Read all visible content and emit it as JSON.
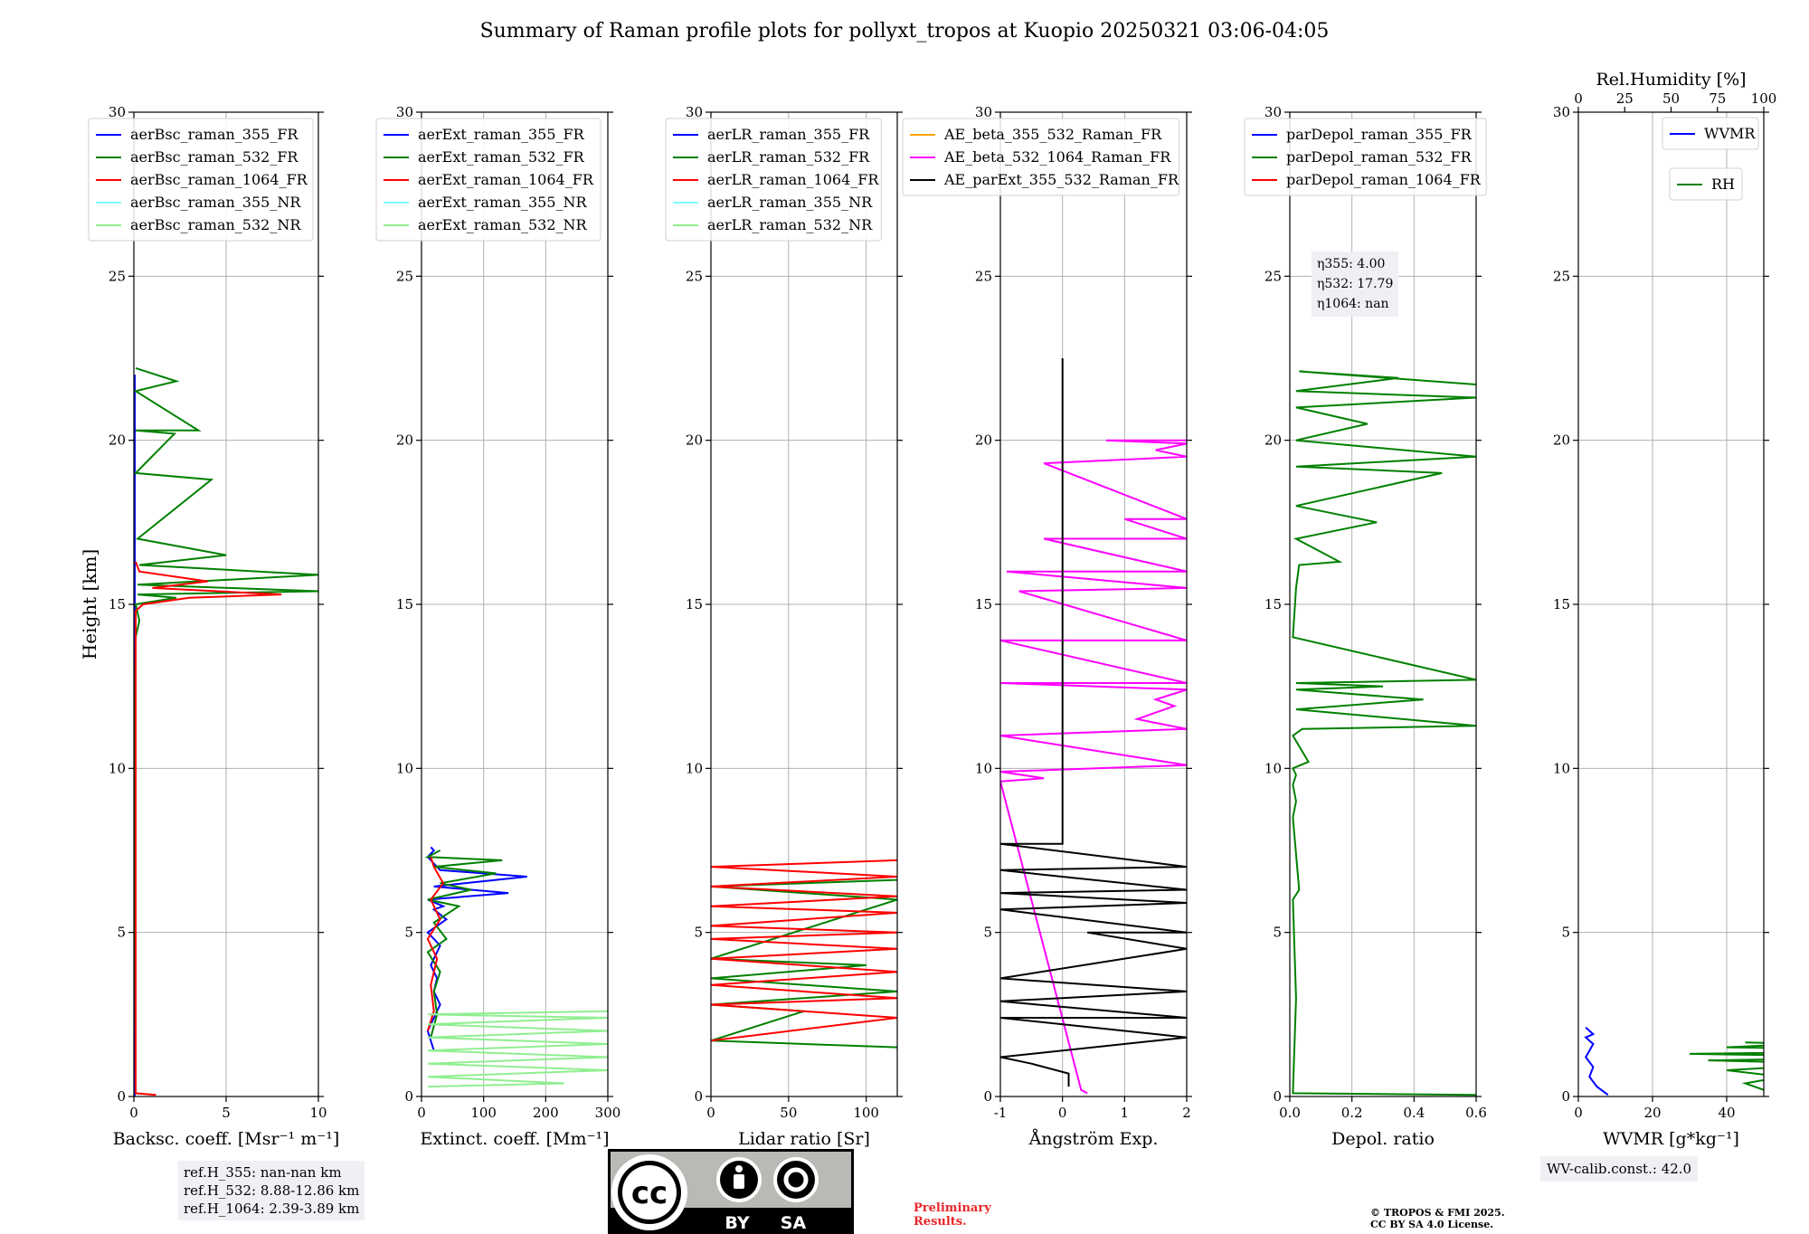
{
  "title": "Summary of Raman profile plots for pollyxt_tropos at Kuopio 20250321 03:06-04:05",
  "ref_heights": [
    "ref.H_355: nan-nan km",
    "ref.H_532: 8.88-12.86 km",
    "ref.H_1064: 2.39-3.89 km"
  ],
  "wv_calib": "WV-calib.const.: 42.0",
  "eta": [
    "η355: 4.00",
    "η532: 17.79",
    "η1064: nan"
  ],
  "preliminary": [
    "Preliminary",
    "Results."
  ],
  "copyright": [
    "© TROPOS & FMI 2025.",
    "CC BY SA 4.0 License."
  ],
  "license_badge": {
    "left": "BY",
    "right": "SA"
  },
  "colors": {
    "c355": "#0000ff",
    "c532": "#008000",
    "c1064": "#ff0000",
    "nr355": "#80ffff",
    "nr532": "#90ee90",
    "ae1": "#ffa500",
    "ae2": "#ff00ff",
    "ae3": "#000000",
    "prelim": "#e8262a"
  },
  "chart_data": [
    {
      "type": "line",
      "xlabel": "Backsc. coeff. [Msr⁻¹ m⁻¹]",
      "ylabel": "Height [km]",
      "xlim": [
        0,
        10
      ],
      "xticks": [
        0,
        5,
        10
      ],
      "ylim": [
        0,
        30
      ],
      "yticks": [
        0,
        5,
        10,
        15,
        20,
        25,
        30
      ],
      "legend": [
        "aerBsc_raman_355_FR",
        "aerBsc_raman_532_FR",
        "aerBsc_raman_1064_FR",
        "aerBsc_raman_355_NR",
        "aerBsc_raman_532_NR"
      ],
      "legend_loc": "top-left",
      "series": [
        {
          "name": "aerBsc_raman_355_FR",
          "color": "#0000ff",
          "x": [
            0.05,
            0.05,
            0.05
          ],
          "y": [
            0,
            10,
            22
          ]
        },
        {
          "name": "aerBsc_raman_532_FR",
          "color": "#008000",
          "x": [
            0.1,
            0.05,
            0.1,
            0.3,
            0.1,
            2.3,
            0.2,
            10,
            0.2,
            10,
            0.3,
            5,
            0.2,
            4.2,
            0.1,
            2.2,
            0.1,
            3.5,
            0.1,
            2.3,
            0.1
          ],
          "y": [
            0.2,
            10,
            14,
            14.5,
            15,
            15.2,
            15.3,
            15.4,
            15.6,
            15.9,
            16.2,
            16.5,
            17,
            18.8,
            19,
            20.2,
            20.3,
            20.3,
            21.5,
            21.8,
            22.2
          ]
        },
        {
          "name": "aerBsc_raman_1064_FR",
          "color": "#ff0000",
          "x": [
            1.2,
            0.1,
            0.1,
            0.5,
            3,
            8,
            1,
            4,
            0.3,
            0.1
          ],
          "y": [
            0.05,
            0.1,
            14.8,
            15,
            15.2,
            15.3,
            15.5,
            15.7,
            16,
            16.3
          ]
        },
        {
          "name": "aerBsc_raman_355_NR",
          "color": "#80ffff",
          "x": [],
          "y": []
        },
        {
          "name": "aerBsc_raman_532_NR",
          "color": "#90ee90",
          "x": [],
          "y": []
        }
      ]
    },
    {
      "type": "line",
      "xlabel": "Extinct. coeff. [Mm⁻¹]",
      "xlim": [
        0,
        300
      ],
      "xticks": [
        0,
        100,
        200,
        300
      ],
      "ylim": [
        0,
        30
      ],
      "yticks": [
        0,
        5,
        10,
        15,
        20,
        25,
        30
      ],
      "legend": [
        "aerExt_raman_355_FR",
        "aerExt_raman_532_FR",
        "aerExt_raman_1064_FR",
        "aerExt_raman_355_NR",
        "aerExt_raman_532_NR"
      ],
      "legend_loc": "top-left",
      "series": [
        {
          "name": "aerExt_raman_355_FR",
          "color": "#0000ff",
          "x": [
            20,
            10,
            30,
            20,
            25,
            15,
            30,
            10,
            40,
            20,
            35,
            10,
            140,
            20,
            170,
            30,
            20,
            10,
            20,
            15
          ],
          "y": [
            1.4,
            2.0,
            2.8,
            3.2,
            3.6,
            4.0,
            4.6,
            5.0,
            5.4,
            5.7,
            5.8,
            6.0,
            6.2,
            6.4,
            6.7,
            6.9,
            7.1,
            7.3,
            7.5,
            7.6
          ]
        },
        {
          "name": "aerExt_raman_532_FR",
          "color": "#008000",
          "x": [
            15,
            25,
            20,
            30,
            10,
            40,
            20,
            60,
            10,
            80,
            30,
            120,
            20,
            130,
            10,
            30
          ],
          "y": [
            1.8,
            2.5,
            3.2,
            3.8,
            4.4,
            4.8,
            5.3,
            5.8,
            6.0,
            6.3,
            6.5,
            6.8,
            7.0,
            7.2,
            7.3,
            7.5
          ]
        },
        {
          "name": "aerExt_raman_1064_FR",
          "color": "#ff0000",
          "x": [
            10,
            20,
            15,
            25,
            10,
            30,
            15,
            35,
            20,
            15
          ],
          "y": [
            2.0,
            2.6,
            3.4,
            4.2,
            4.8,
            5.4,
            6.0,
            6.5,
            7.0,
            7.3
          ]
        },
        {
          "name": "aerExt_raman_355_NR",
          "color": "#80ffff",
          "x": [],
          "y": []
        },
        {
          "name": "aerExt_raman_532_NR",
          "color": "#90ee90",
          "x": [
            10,
            230,
            10,
            300,
            10,
            300,
            10,
            300,
            10,
            300,
            10,
            300,
            10,
            300
          ],
          "y": [
            0.3,
            0.4,
            0.6,
            0.8,
            1.0,
            1.2,
            1.4,
            1.6,
            1.8,
            2.0,
            2.2,
            2.4,
            2.5,
            2.6
          ]
        }
      ]
    },
    {
      "type": "line",
      "xlabel": "Lidar ratio [Sr]",
      "xlim": [
        0,
        120
      ],
      "xticks": [
        0,
        50,
        100
      ],
      "ylim": [
        0,
        30
      ],
      "yticks": [
        0,
        5,
        10,
        15,
        20,
        25,
        30
      ],
      "legend": [
        "aerLR_raman_355_FR",
        "aerLR_raman_532_FR",
        "aerLR_raman_1064_FR",
        "aerLR_raman_355_NR",
        "aerLR_raman_532_NR"
      ],
      "legend_loc": "top-left",
      "series": [
        {
          "name": "aerLR_raman_355_FR",
          "color": "#0000ff",
          "x": [],
          "y": []
        },
        {
          "name": "aerLR_raman_532_FR",
          "color": "#008000",
          "x": [
            120,
            0,
            60,
            0,
            120,
            0,
            100,
            0,
            120,
            0,
            120
          ],
          "y": [
            1.5,
            1.7,
            2.6,
            2.8,
            3.2,
            3.6,
            4.0,
            4.2,
            6.0,
            6.4,
            6.6
          ]
        },
        {
          "name": "aerLR_raman_1064_FR",
          "color": "#ff0000",
          "x": [
            0,
            120,
            0,
            120,
            0,
            120,
            0,
            120,
            0,
            120,
            0,
            120,
            0,
            120,
            0,
            120,
            0,
            120
          ],
          "y": [
            1.7,
            2.4,
            2.8,
            3.0,
            3.4,
            3.8,
            4.2,
            4.5,
            4.8,
            5.0,
            5.2,
            5.6,
            5.8,
            6.1,
            6.4,
            6.7,
            7.0,
            7.2
          ]
        },
        {
          "name": "aerLR_raman_355_NR",
          "color": "#80ffff",
          "x": [],
          "y": []
        },
        {
          "name": "aerLR_raman_532_NR",
          "color": "#90ee90",
          "x": [],
          "y": []
        }
      ]
    },
    {
      "type": "line",
      "xlabel": "Ångström Exp.",
      "xlim": [
        -1,
        2
      ],
      "xticks": [
        -1,
        0,
        1,
        2
      ],
      "ylim": [
        0,
        30
      ],
      "yticks": [
        0,
        5,
        10,
        15,
        20,
        25,
        30
      ],
      "legend": [
        "AE_beta_355_532_Raman_FR",
        "AE_beta_532_1064_Raman_FR",
        "AE_parExt_355_532_Raman_FR"
      ],
      "legend_loc": "top-center",
      "series": [
        {
          "name": "AE_beta_355_532_Raman_FR",
          "color": "#ffa500",
          "x": [],
          "y": []
        },
        {
          "name": "AE_beta_532_1064_Raman_FR",
          "color": "#ff00ff",
          "x": [
            0.4,
            0.3,
            -1,
            -0.3,
            -1,
            2,
            -1,
            2,
            1.2,
            1.8,
            1.5,
            2,
            -1,
            2,
            -1,
            2,
            -0.7,
            2,
            -0.9,
            2,
            -0.3,
            2,
            1,
            2,
            -0.3,
            2,
            1.5,
            2,
            0.7,
            2
          ],
          "y": [
            0.1,
            0.2,
            9.6,
            9.7,
            9.9,
            10.1,
            11.0,
            11.2,
            11.5,
            11.9,
            12.1,
            12.4,
            12.6,
            12.6,
            13.9,
            13.9,
            15.4,
            15.5,
            16.0,
            16.0,
            17.0,
            17.0,
            17.6,
            17.6,
            19.3,
            19.5,
            19.7,
            19.9,
            20.0,
            20.0
          ]
        },
        {
          "name": "AE_parExt_355_532_Raman_FR",
          "color": "#000000",
          "x": [
            0.1,
            0.1,
            -0.5,
            -1,
            2,
            -1,
            2,
            -1,
            2,
            -1,
            2,
            0.4,
            2,
            -1,
            2,
            -1,
            2,
            -1,
            2,
            -1,
            0,
            0,
            0
          ],
          "y": [
            0.3,
            0.7,
            1.0,
            1.2,
            1.8,
            2.4,
            2.4,
            2.9,
            3.2,
            3.6,
            4.5,
            5.0,
            5.0,
            5.7,
            5.9,
            6.2,
            6.3,
            6.9,
            7.0,
            7.7,
            7.7,
            15,
            22.5
          ]
        }
      ]
    },
    {
      "type": "line",
      "xlabel": "Depol. ratio",
      "xlim": [
        0,
        0.6
      ],
      "xticks": [
        0.0,
        0.2,
        0.4,
        0.6
      ],
      "ylim": [
        0,
        30
      ],
      "yticks": [
        0,
        5,
        10,
        15,
        20,
        25,
        30
      ],
      "legend": [
        "parDepol_raman_355_FR",
        "parDepol_raman_532_FR",
        "parDepol_raman_1064_FR"
      ],
      "legend_loc": "top-left",
      "series": [
        {
          "name": "parDepol_raman_355_FR",
          "color": "#0000ff",
          "x": [],
          "y": []
        },
        {
          "name": "parDepol_raman_532_FR",
          "color": "#008000",
          "x": [
            0.6,
            0.01,
            0.02,
            0.01,
            0.03,
            0.01,
            0.02,
            0.01,
            0.02,
            0.01,
            0.06,
            0.01,
            0.04,
            0.6,
            0.02,
            0.43,
            0.02,
            0.3,
            0.02,
            0.6,
            0.01,
            0.02,
            0.03,
            0.16,
            0.02,
            0.28,
            0.02,
            0.49,
            0.02,
            0.6,
            0.02,
            0.25,
            0.02,
            0.6,
            0.02,
            0.35,
            0.03,
            0.6
          ],
          "y": [
            0.05,
            0.1,
            3,
            6,
            6.3,
            8.5,
            9,
            9.5,
            9.8,
            10,
            10.2,
            11,
            11.2,
            11.3,
            11.8,
            12.1,
            12.4,
            12.5,
            12.6,
            12.7,
            14,
            15.5,
            16.2,
            16.3,
            17,
            17.5,
            18,
            19,
            19.2,
            19.5,
            20,
            20.5,
            21,
            21.3,
            21.5,
            21.9,
            22.1,
            21.7
          ]
        },
        {
          "name": "parDepol_raman_1064_FR",
          "color": "#ff0000",
          "x": [],
          "y": []
        }
      ]
    },
    {
      "type": "line",
      "xlabel": "WVMR [g*kg⁻¹]",
      "top_xlabel": "Rel.Humidity [%]",
      "xlim": [
        0,
        50
      ],
      "xticks": [
        0,
        20,
        40
      ],
      "top_xlim": [
        0,
        100
      ],
      "top_xticks": [
        0,
        25,
        50,
        75,
        100
      ],
      "ylim": [
        0,
        30
      ],
      "yticks": [
        0,
        5,
        10,
        15,
        20,
        25,
        30
      ],
      "legend": [
        "WVMR",
        "RH"
      ],
      "legend_loc": "top-right",
      "series": [
        {
          "name": "WVMR",
          "color": "#0000ff",
          "x": [
            8,
            5,
            3,
            4,
            2,
            3,
            4,
            2,
            4,
            2
          ],
          "y": [
            0.05,
            0.3,
            0.6,
            0.9,
            1.2,
            1.4,
            1.6,
            1.8,
            1.9,
            2.1
          ]
        },
        {
          "name": "RH",
          "color": "#008000",
          "x": [
            95,
            50,
            45,
            55,
            40,
            70,
            35,
            90,
            30,
            100,
            40,
            60,
            45
          ],
          "y": [
            0.05,
            0.2,
            0.4,
            0.6,
            0.8,
            1.0,
            1.1,
            1.2,
            1.3,
            1.4,
            1.5,
            1.6,
            1.65
          ]
        }
      ]
    }
  ]
}
